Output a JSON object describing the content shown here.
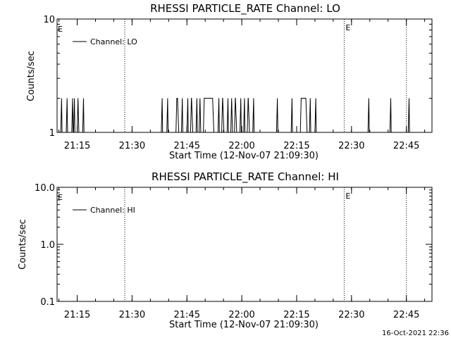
{
  "footer": {
    "timestamp": "16-Oct-2021 22:36"
  },
  "chart_data": [
    {
      "type": "line",
      "title": "RHESSI PARTICLE_RATE Channel: LO",
      "xlabel": "Start Time (12-Nov-07 21:09:30)",
      "ylabel": "Counts/sec",
      "yscale": "log",
      "ylim": [
        1,
        10
      ],
      "y_tick_labels": [
        "1",
        "10"
      ],
      "xlim_minutes": [
        21.1,
        22.52
      ],
      "x_tick_labels": [
        "21:15",
        "21:30",
        "21:45",
        "22:00",
        "22:15",
        "22:30",
        "22:45"
      ],
      "event_markers": [
        {
          "time": "21:28",
          "label": ""
        },
        {
          "time": "22:28",
          "label": "E"
        },
        {
          "time": "22:45",
          "label": ""
        }
      ],
      "edge_marker_label": "E",
      "legend": {
        "label": "Channel: LO",
        "position": "top-left"
      },
      "series": [
        {
          "name": "Channel: LO",
          "spikes": [
            {
              "start": "21:10:30",
              "end": "21:10:45"
            },
            {
              "start": "21:12:00",
              "end": "21:12:15"
            },
            {
              "start": "21:13:30",
              "end": "21:13:45"
            },
            {
              "start": "21:14:00",
              "end": "21:14:15"
            },
            {
              "start": "21:15:00",
              "end": "21:15:20"
            },
            {
              "start": "21:16:30",
              "end": "21:16:45"
            },
            {
              "start": "21:38:00",
              "end": "21:38:15"
            },
            {
              "start": "21:39:30",
              "end": "21:39:45"
            },
            {
              "start": "21:42:00",
              "end": "21:42:40"
            },
            {
              "start": "21:43:30",
              "end": "21:43:45"
            },
            {
              "start": "21:45:00",
              "end": "21:45:15"
            },
            {
              "start": "21:46:00",
              "end": "21:46:30"
            },
            {
              "start": "21:47:30",
              "end": "21:47:45"
            },
            {
              "start": "21:48:20",
              "end": "21:48:40"
            },
            {
              "start": "21:49:30",
              "end": "21:52:15"
            },
            {
              "start": "21:53:30",
              "end": "21:53:45"
            },
            {
              "start": "21:54:30",
              "end": "21:55:00"
            },
            {
              "start": "21:56:00",
              "end": "21:56:15"
            },
            {
              "start": "21:57:00",
              "end": "21:57:20"
            },
            {
              "start": "21:58:00",
              "end": "21:58:30"
            },
            {
              "start": "21:59:30",
              "end": "21:59:45"
            },
            {
              "start": "22:00:30",
              "end": "22:00:45"
            },
            {
              "start": "22:01:30",
              "end": "22:02:00"
            },
            {
              "start": "22:03:00",
              "end": "22:03:15"
            },
            {
              "start": "22:09:30",
              "end": "22:09:45"
            },
            {
              "start": "22:13:30",
              "end": "22:13:45"
            },
            {
              "start": "22:16:00",
              "end": "22:17:45"
            },
            {
              "start": "22:18:30",
              "end": "22:18:45"
            },
            {
              "start": "22:20:00",
              "end": "22:20:15"
            },
            {
              "start": "22:34:30",
              "end": "22:34:45"
            },
            {
              "start": "22:40:30",
              "end": "22:40:45"
            },
            {
              "start": "22:45:30",
              "end": "22:45:45"
            }
          ],
          "spike_value": 2,
          "baseline_value": 1
        }
      ]
    },
    {
      "type": "line",
      "title": "RHESSI PARTICLE_RATE Channel: HI",
      "xlabel": "Start Time (12-Nov-07 21:09:30)",
      "ylabel": "Counts/sec",
      "yscale": "log",
      "ylim": [
        0.1,
        10
      ],
      "y_tick_labels": [
        "0.1",
        "1.0",
        "10.0"
      ],
      "xlim_minutes": [
        21.1,
        22.52
      ],
      "x_tick_labels": [
        "21:15",
        "21:30",
        "21:45",
        "22:00",
        "22:15",
        "22:30",
        "22:45"
      ],
      "event_markers": [
        {
          "time": "21:28",
          "label": ""
        },
        {
          "time": "22:28",
          "label": "E"
        },
        {
          "time": "22:45",
          "label": ""
        }
      ],
      "edge_marker_label": "E",
      "legend": {
        "label": "Channel: HI",
        "position": "top-left"
      },
      "series": [
        {
          "name": "Channel: HI",
          "spikes": []
        }
      ]
    }
  ]
}
